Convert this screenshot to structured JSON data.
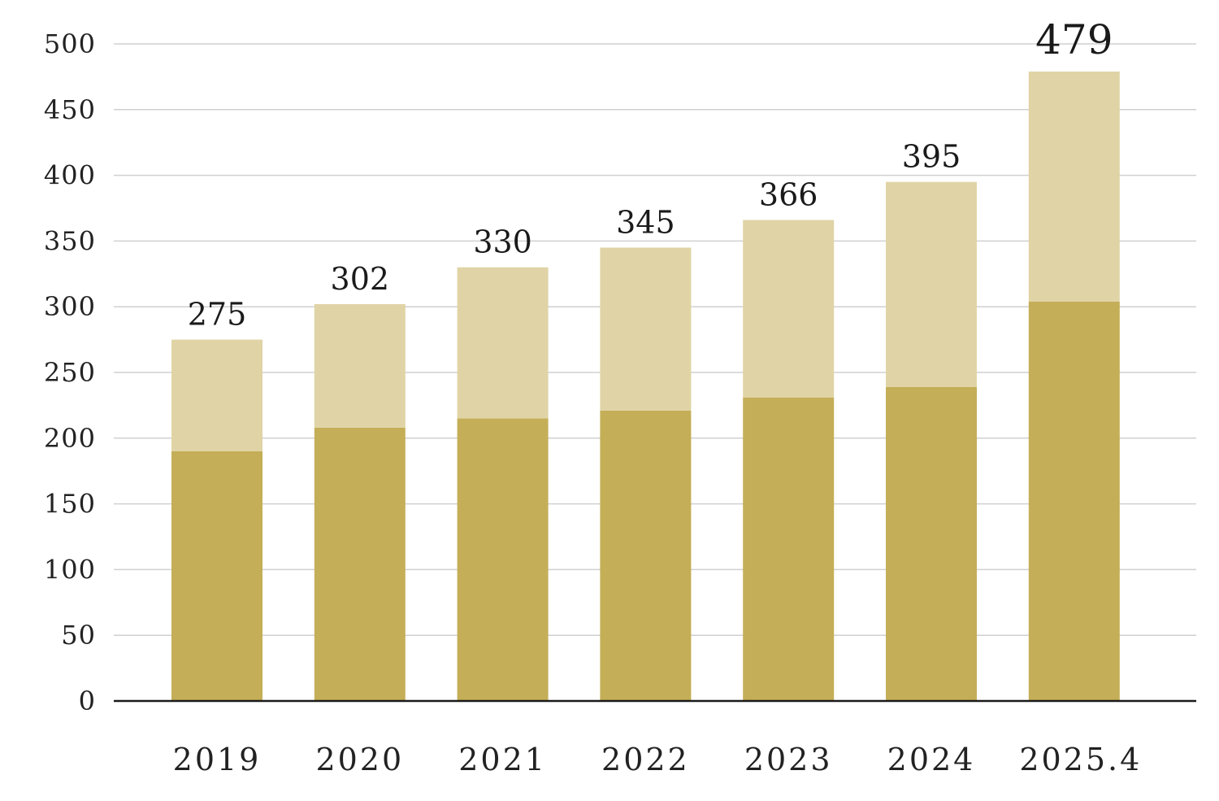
{
  "chart_data": {
    "type": "bar",
    "stacked": true,
    "categories": [
      "2019",
      "2020",
      "2021",
      "2022",
      "2023",
      "2024",
      "2025.4"
    ],
    "series": [
      {
        "values": [
          190,
          208,
          215,
          221,
          231,
          239,
          304
        ]
      },
      {
        "values": [
          85,
          94,
          115,
          124,
          135,
          156,
          175
        ]
      }
    ],
    "totals": [
      "275",
      "302",
      "330",
      "345",
      "366",
      "395",
      "479"
    ],
    "ylim": [
      0,
      500
    ],
    "yticks": [
      "0",
      "50",
      "100",
      "150",
      "200",
      "250",
      "300",
      "350",
      "400",
      "450",
      "500"
    ],
    "grid": true,
    "colors": {
      "lower": "#c4ae57",
      "upper": "#e0d4a6",
      "grid": "#d0d0d0",
      "axis": "#1a1a1a"
    }
  }
}
